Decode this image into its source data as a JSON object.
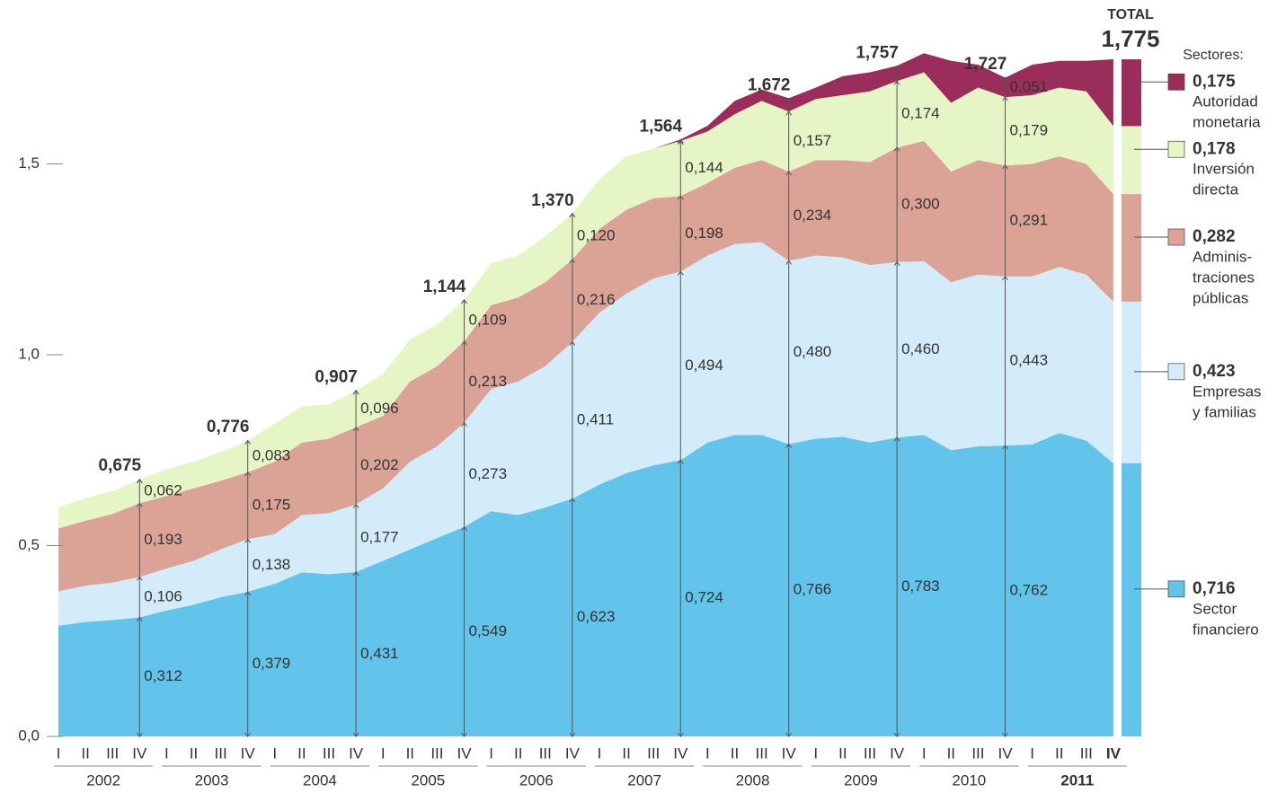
{
  "chart_data": {
    "type": "stacked-area",
    "total_title": "TOTAL",
    "legend_title": "Sectores:",
    "categories": [
      "I",
      "II",
      "III",
      "IV",
      "I",
      "II",
      "III",
      "IV",
      "I",
      "II",
      "III",
      "IV",
      "I",
      "II",
      "III",
      "IV",
      "I",
      "II",
      "III",
      "IV",
      "I",
      "II",
      "III",
      "IV",
      "I",
      "II",
      "III",
      "IV",
      "I",
      "II",
      "III",
      "IV",
      "I",
      "II",
      "III",
      "IV",
      "I",
      "II",
      "III",
      "IV"
    ],
    "years": [
      "2002",
      "2003",
      "2004",
      "2005",
      "2006",
      "2007",
      "2008",
      "2009",
      "2010",
      "2011"
    ],
    "ylim": [
      0,
      1.9
    ],
    "yticks": [
      {
        "value": 0,
        "label": "0,0"
      },
      {
        "value": 0.5,
        "label": "0,5"
      },
      {
        "value": 1.0,
        "label": "1,0"
      },
      {
        "value": 1.5,
        "label": "1,5"
      }
    ],
    "totals": [
      {
        "value": 0.675,
        "label": "0,675"
      },
      {
        "value": 0.776,
        "label": "0,776"
      },
      {
        "value": 0.907,
        "label": "0,907"
      },
      {
        "value": 1.144,
        "label": "1,144"
      },
      {
        "value": 1.37,
        "label": "1,370"
      },
      {
        "value": 1.564,
        "label": "1,564"
      },
      {
        "value": 1.672,
        "label": "1,672"
      },
      {
        "value": 1.757,
        "label": "1,757"
      },
      {
        "value": 1.727,
        "label": "1,727"
      },
      {
        "value": 1.775,
        "label": "1,775"
      }
    ],
    "series": [
      {
        "name": [
          "Sector",
          "financiero"
        ],
        "color": "#62c3eb",
        "values": [
          0.29,
          0.3,
          0.305,
          0.312,
          0.33,
          0.345,
          0.365,
          0.379,
          0.4,
          0.43,
          0.425,
          0.431,
          0.46,
          0.49,
          0.52,
          0.549,
          0.59,
          0.58,
          0.6,
          0.623,
          0.66,
          0.69,
          0.71,
          0.724,
          0.77,
          0.79,
          0.79,
          0.766,
          0.78,
          0.785,
          0.77,
          0.783,
          0.79,
          0.75,
          0.76,
          0.762,
          0.765,
          0.795,
          0.775,
          0.716
        ],
        "value_labels": [
          null,
          null,
          null,
          "0,312",
          null,
          null,
          null,
          "0,379",
          null,
          null,
          null,
          "0,431",
          null,
          null,
          null,
          "0,549",
          null,
          null,
          null,
          "0,623",
          null,
          null,
          null,
          "0,724",
          null,
          null,
          null,
          "0,766",
          null,
          null,
          null,
          "0,783",
          null,
          null,
          null,
          "0,762",
          null,
          null,
          null,
          "0,716"
        ]
      },
      {
        "name": [
          "Empresas",
          "y familias"
        ],
        "color": "#d2edf9",
        "values": [
          0.09,
          0.095,
          0.098,
          0.106,
          0.11,
          0.115,
          0.125,
          0.138,
          0.13,
          0.15,
          0.16,
          0.177,
          0.19,
          0.23,
          0.24,
          0.273,
          0.32,
          0.35,
          0.37,
          0.411,
          0.45,
          0.47,
          0.49,
          0.494,
          0.49,
          0.5,
          0.505,
          0.48,
          0.48,
          0.47,
          0.465,
          0.46,
          0.455,
          0.44,
          0.45,
          0.443,
          0.44,
          0.435,
          0.435,
          0.423
        ],
        "value_labels": [
          null,
          null,
          null,
          "0,106",
          null,
          null,
          null,
          "0,138",
          null,
          null,
          null,
          "0,177",
          null,
          null,
          null,
          "0,273",
          null,
          null,
          null,
          "0,411",
          null,
          null,
          null,
          "0,494",
          null,
          null,
          null,
          "0,480",
          null,
          null,
          null,
          "0,460",
          null,
          null,
          null,
          "0,443",
          null,
          null,
          null,
          "0,423"
        ]
      },
      {
        "name": [
          "Adminis-",
          "traciones",
          "públicas"
        ],
        "color": "#dba395",
        "values": [
          0.165,
          0.17,
          0.18,
          0.193,
          0.19,
          0.19,
          0.18,
          0.175,
          0.19,
          0.19,
          0.195,
          0.202,
          0.19,
          0.21,
          0.21,
          0.213,
          0.22,
          0.22,
          0.22,
          0.216,
          0.22,
          0.22,
          0.21,
          0.198,
          0.19,
          0.2,
          0.215,
          0.234,
          0.25,
          0.255,
          0.27,
          0.3,
          0.315,
          0.29,
          0.3,
          0.291,
          0.295,
          0.29,
          0.29,
          0.282
        ],
        "value_labels": [
          null,
          null,
          null,
          "0,193",
          null,
          null,
          null,
          "0,175",
          null,
          null,
          null,
          "0,202",
          null,
          null,
          null,
          "0,213",
          null,
          null,
          null,
          "0,216",
          null,
          null,
          null,
          "0,198",
          null,
          null,
          null,
          "0,234",
          null,
          null,
          null,
          "0,300",
          null,
          null,
          null,
          "0,291",
          null,
          null,
          null,
          "0,282"
        ]
      },
      {
        "name": [
          "Inversión",
          "directa"
        ],
        "color": "#e5f5c6",
        "values": [
          0.055,
          0.06,
          0.06,
          0.062,
          0.07,
          0.07,
          0.075,
          0.083,
          0.1,
          0.095,
          0.09,
          0.096,
          0.11,
          0.11,
          0.11,
          0.109,
          0.11,
          0.11,
          0.12,
          0.12,
          0.13,
          0.14,
          0.13,
          0.144,
          0.135,
          0.14,
          0.155,
          0.157,
          0.16,
          0.17,
          0.185,
          0.174,
          0.18,
          0.18,
          0.19,
          0.179,
          0.18,
          0.18,
          0.19,
          0.178
        ],
        "value_labels": [
          null,
          null,
          null,
          "0,062",
          null,
          null,
          null,
          "0,083",
          null,
          null,
          null,
          "0,096",
          null,
          null,
          null,
          "0,109",
          null,
          null,
          null,
          "0,120",
          null,
          null,
          null,
          "0,144",
          null,
          null,
          null,
          "0,157",
          null,
          null,
          null,
          "0,174",
          null,
          null,
          null,
          "0,179",
          null,
          null,
          null,
          "0,178"
        ]
      },
      {
        "name": [
          "Autoridad",
          "monetaria"
        ],
        "color": "#9b2d5a",
        "values": [
          0,
          0,
          0,
          0,
          0,
          0,
          0,
          0,
          0,
          0,
          0,
          0,
          0,
          0,
          0,
          0,
          0,
          0,
          0,
          0,
          0,
          0,
          0,
          0.004,
          0.015,
          0.035,
          0.03,
          0.035,
          0.03,
          0.05,
          0.05,
          0.04,
          0.05,
          0.11,
          0.06,
          0.051,
          0.08,
          0.07,
          0.08,
          0.175
        ],
        "value_labels": [
          null,
          null,
          null,
          null,
          null,
          null,
          null,
          null,
          null,
          null,
          null,
          null,
          null,
          null,
          null,
          null,
          null,
          null,
          null,
          null,
          null,
          null,
          null,
          null,
          null,
          null,
          null,
          null,
          null,
          null,
          null,
          null,
          null,
          null,
          null,
          "0,051",
          null,
          null,
          null,
          "0,175"
        ]
      }
    ]
  }
}
